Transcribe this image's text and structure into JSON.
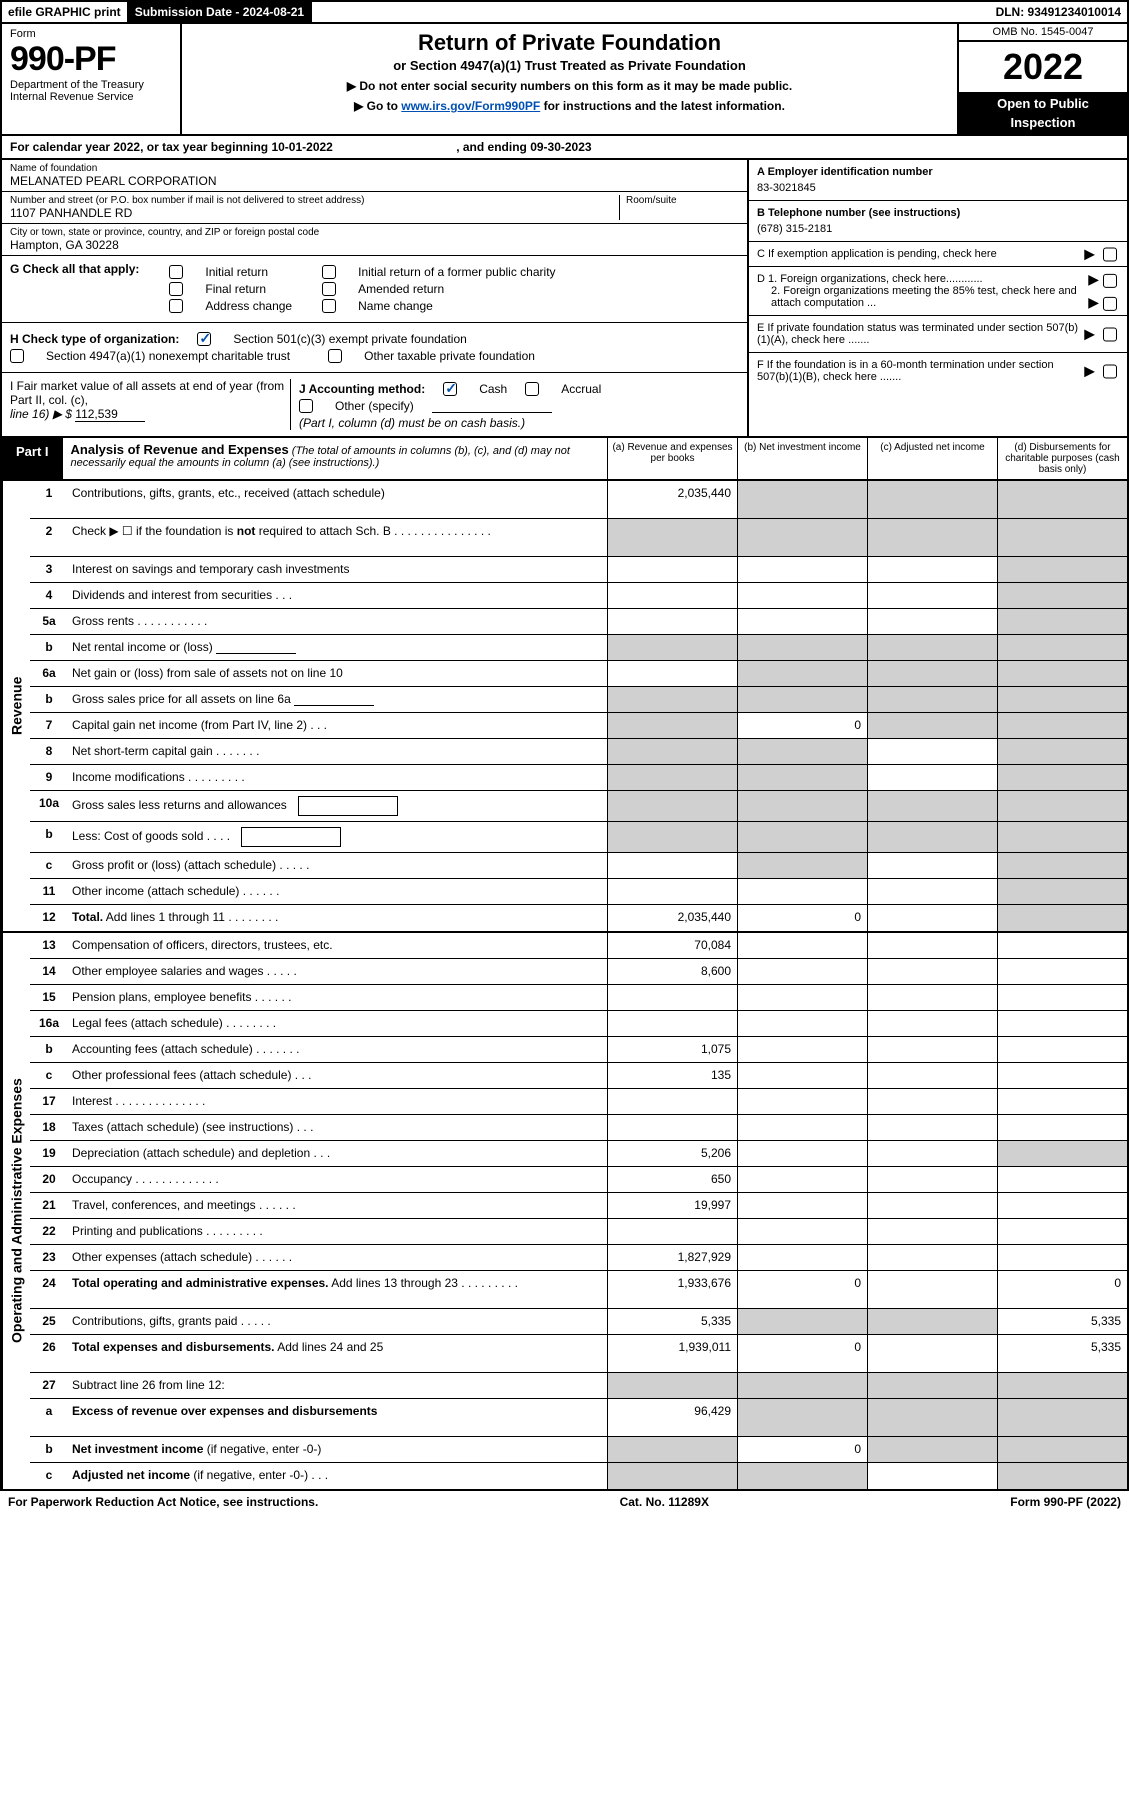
{
  "topbar": {
    "efile": "efile GRAPHIC print",
    "submission_label": "Submission Date - 2024-08-21",
    "dln": "DLN: 93491234010014"
  },
  "header": {
    "form_label": "Form",
    "form_number": "990-PF",
    "dept1": "Department of the Treasury",
    "dept2": "Internal Revenue Service",
    "title": "Return of Private Foundation",
    "subtitle": "or Section 4947(a)(1) Trust Treated as Private Foundation",
    "note1": "▶ Do not enter social security numbers on this form as it may be made public.",
    "note2_pre": "▶ Go to ",
    "note2_link": "www.irs.gov/Form990PF",
    "note2_post": " for instructions and the latest information.",
    "omb": "OMB No. 1545-0047",
    "year": "2022",
    "open1": "Open to Public",
    "open2": "Inspection"
  },
  "calendar": {
    "text_pre": "For calendar year 2022, or tax year beginning ",
    "begin": "10-01-2022",
    "mid": " , and ending ",
    "end": "09-30-2023"
  },
  "foundation": {
    "name_label": "Name of foundation",
    "name": "MELANATED PEARL CORPORATION",
    "addr_label": "Number and street (or P.O. box number if mail is not delivered to street address)",
    "addr": "1107 PANHANDLE RD",
    "room_label": "Room/suite",
    "city_label": "City or town, state or province, country, and ZIP or foreign postal code",
    "city": "Hampton, GA  30228"
  },
  "right_info": {
    "a_label": "A Employer identification number",
    "a_val": "83-3021845",
    "b_label": "B Telephone number (see instructions)",
    "b_val": "(678) 315-2181",
    "c_label": "C If exemption application is pending, check here",
    "d1": "D 1. Foreign organizations, check here............",
    "d2": "2. Foreign organizations meeting the 85% test, check here and attach computation ...",
    "e": "E  If private foundation status was terminated under section 507(b)(1)(A), check here .......",
    "f": "F  If the foundation is in a 60-month termination under section 507(b)(1)(B), check here ......."
  },
  "g": {
    "label": "G Check all that apply:",
    "opts": [
      "Initial return",
      "Final return",
      "Address change",
      "Initial return of a former public charity",
      "Amended return",
      "Name change"
    ]
  },
  "h": {
    "label": "H Check type of organization:",
    "opt1": "Section 501(c)(3) exempt private foundation",
    "opt2": "Section 4947(a)(1) nonexempt charitable trust",
    "opt3": "Other taxable private foundation"
  },
  "i": {
    "label": "I Fair market value of all assets at end of year (from Part II, col. (c),",
    "line": "line 16) ▶ $",
    "val": "112,539"
  },
  "j": {
    "label": "J Accounting method:",
    "cash": "Cash",
    "accrual": "Accrual",
    "other": "Other (specify)",
    "note": "(Part I, column (d) must be on cash basis.)"
  },
  "part1": {
    "label": "Part I",
    "title": "Analysis of Revenue and Expenses",
    "note": " (The total of amounts in columns (b), (c), and (d) may not necessarily equal the amounts in column (a) (see instructions).)",
    "col_a": "(a)   Revenue and expenses per books",
    "col_b": "(b)   Net investment income",
    "col_c": "(c)   Adjusted net income",
    "col_d": "(d)   Disbursements for charitable purposes (cash basis only)"
  },
  "side": {
    "revenue": "Revenue",
    "expenses": "Operating and Administrative Expenses"
  },
  "rows": [
    {
      "n": "1",
      "d": "Contributions, gifts, grants, etc., received (attach schedule)",
      "a": "2,035,440",
      "tall": true,
      "gb": true,
      "gc": true,
      "gd": true
    },
    {
      "n": "2",
      "d": "Check ▶ ☐ if the foundation is <b>not</b> required to attach Sch. B    .   .   .   .   .   .   .   .   .   .   .   .   .   .   .",
      "tall": true,
      "ga": true,
      "gb": true,
      "gc": true,
      "gd": true
    },
    {
      "n": "3",
      "d": "Interest on savings and temporary cash investments",
      "gd": true
    },
    {
      "n": "4",
      "d": "Dividends and interest from securities    .   .   .",
      "gd": true
    },
    {
      "n": "5a",
      "d": "Gross rents    .   .   .   .   .   .   .   .   .   .   .",
      "gd": true
    },
    {
      "n": "b",
      "d": "Net rental income or (loss) <span class='inline-input'></span>",
      "ga": true,
      "gb": true,
      "gc": true,
      "gd": true
    },
    {
      "n": "6a",
      "d": "Net gain or (loss) from sale of assets not on line 10",
      "gb": true,
      "gc": true,
      "gd": true
    },
    {
      "n": "b",
      "d": "Gross sales price for all assets on line 6a <span class='inline-input'></span>",
      "ga": true,
      "gb": true,
      "gc": true,
      "gd": true
    },
    {
      "n": "7",
      "d": "Capital gain net income (from Part IV, line 2)   .   .   .",
      "ga": true,
      "b": "0",
      "gc": true,
      "gd": true
    },
    {
      "n": "8",
      "d": "Net short-term capital gain  .   .   .   .   .   .   .",
      "ga": true,
      "gb": true,
      "gd": true
    },
    {
      "n": "9",
      "d": "Income modifications .   .   .   .   .   .   .   .   .",
      "ga": true,
      "gb": true,
      "gd": true
    },
    {
      "n": "10a",
      "d": "Gross sales less returns and allowances <span class='inline-box'></span>",
      "ga": true,
      "gb": true,
      "gc": true,
      "gd": true
    },
    {
      "n": "b",
      "d": "Less: Cost of goods sold   .   .   .   . <span class='inline-box'></span>",
      "ga": true,
      "gb": true,
      "gc": true,
      "gd": true
    },
    {
      "n": "c",
      "d": "Gross profit or (loss) (attach schedule)   .   .   .   .   .",
      "gb": true,
      "gd": true
    },
    {
      "n": "11",
      "d": "Other income (attach schedule)   .   .   .   .   .   .",
      "gd": true
    },
    {
      "n": "12",
      "d": "<b>Total.</b> Add lines 1 through 11   .   .   .   .   .   .   .   .",
      "a": "2,035,440",
      "b": "0",
      "gd": true
    }
  ],
  "exp_rows": [
    {
      "n": "13",
      "d": "Compensation of officers, directors, trustees, etc.",
      "a": "70,084"
    },
    {
      "n": "14",
      "d": "Other employee salaries and wages   .   .   .   .   .",
      "a": "8,600"
    },
    {
      "n": "15",
      "d": "Pension plans, employee benefits  .   .   .   .   .   ."
    },
    {
      "n": "16a",
      "d": "Legal fees (attach schedule) .   .   .   .   .   .   .   ."
    },
    {
      "n": "b",
      "d": "Accounting fees (attach schedule) .   .   .   .   .   .   .",
      "a": "1,075"
    },
    {
      "n": "c",
      "d": "Other professional fees (attach schedule)   .   .   .",
      "a": "135"
    },
    {
      "n": "17",
      "d": "Interest .   .   .   .   .   .   .   .   .   .   .   .   .   ."
    },
    {
      "n": "18",
      "d": "Taxes (attach schedule) (see instructions)   .   .   ."
    },
    {
      "n": "19",
      "d": "Depreciation (attach schedule) and depletion   .   .   .",
      "a": "5,206",
      "gd": true
    },
    {
      "n": "20",
      "d": "Occupancy .   .   .   .   .   .   .   .   .   .   .   .   .",
      "a": "650"
    },
    {
      "n": "21",
      "d": "Travel, conferences, and meetings .   .   .   .   .   .",
      "a": "19,997"
    },
    {
      "n": "22",
      "d": "Printing and publications .   .   .   .   .   .   .   .   ."
    },
    {
      "n": "23",
      "d": "Other expenses (attach schedule) .   .   .   .   .   .",
      "a": "1,827,929"
    },
    {
      "n": "24",
      "d": "<b>Total operating and administrative expenses.</b> Add lines 13 through 23   .   .   .   .   .   .   .   .   .",
      "a": "1,933,676",
      "b": "0",
      "dcol": "0",
      "tall": true
    },
    {
      "n": "25",
      "d": "Contributions, gifts, grants paid    .   .   .   .   .",
      "a": "5,335",
      "gb": true,
      "gc": true,
      "dcol": "5,335"
    },
    {
      "n": "26",
      "d": "<b>Total expenses and disbursements.</b> Add lines 24 and 25",
      "a": "1,939,011",
      "b": "0",
      "dcol": "5,335",
      "tall": true
    },
    {
      "n": "27",
      "d": "Subtract line 26 from line 12:",
      "ga": true,
      "gb": true,
      "gc": true,
      "gd": true
    },
    {
      "n": "a",
      "d": "<b>Excess of revenue over expenses and disbursements</b>",
      "a": "96,429",
      "gb": true,
      "gc": true,
      "gd": true,
      "tall": true
    },
    {
      "n": "b",
      "d": "<b>Net investment income</b> (if negative, enter -0-)",
      "ga": true,
      "b": "0",
      "gc": true,
      "gd": true
    },
    {
      "n": "c",
      "d": "<b>Adjusted net income</b> (if negative, enter -0-)   .   .   .",
      "ga": true,
      "gb": true,
      "gd": true
    }
  ],
  "footer": {
    "left": "For Paperwork Reduction Act Notice, see instructions.",
    "mid": "Cat. No. 11289X",
    "right": "Form 990-PF (2022)"
  }
}
